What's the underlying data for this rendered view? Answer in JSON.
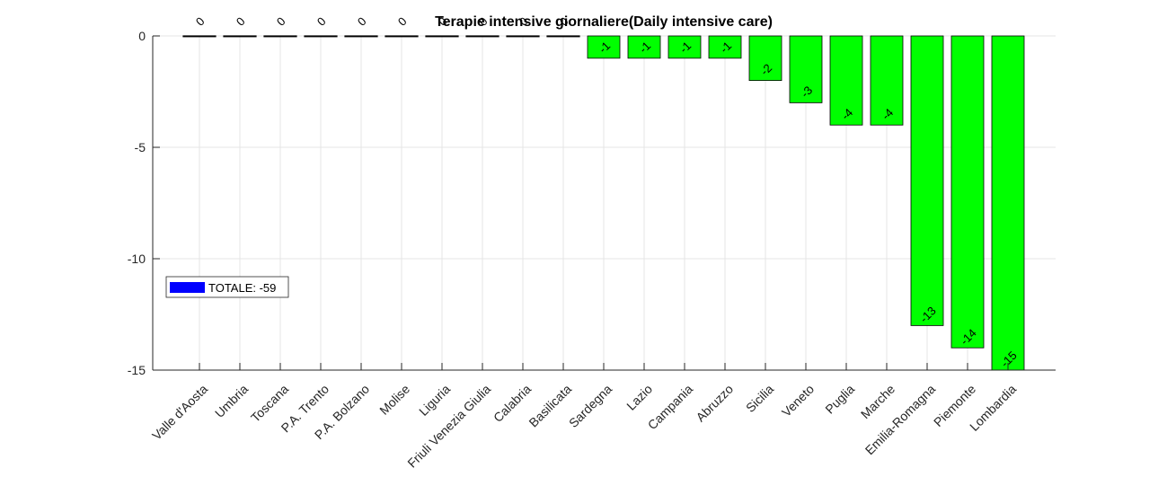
{
  "chart_data": {
    "type": "bar",
    "title": "Terapie intensive giornaliere(Daily intensive care)",
    "categories": [
      "Valle d'Aosta",
      "Umbria",
      "Toscana",
      "P.A. Trento",
      "P.A. Bolzano",
      "Molise",
      "Liguria",
      "Friuli Venezia Giulia",
      "Calabria",
      "Basilicata",
      "Sardegna",
      "Lazio",
      "Campania",
      "Abruzzo",
      "Sicilia",
      "Veneto",
      "Puglia",
      "Marche",
      "Emilia-Romagna",
      "Piemonte",
      "Lombardia"
    ],
    "values": [
      0,
      0,
      0,
      0,
      0,
      0,
      0,
      0,
      0,
      0,
      -1,
      -1,
      -1,
      -1,
      -2,
      -3,
      -4,
      -4,
      -13,
      -14,
      -15
    ],
    "data_labels": [
      "0",
      "0",
      "0",
      "0",
      "0",
      "0",
      "0",
      "0",
      "0",
      "0",
      "-1",
      "-1",
      "-1",
      "-1",
      "-2",
      "-3",
      "-4",
      "-4",
      "-13",
      "-14",
      "-15"
    ],
    "ylim": [
      -15,
      0
    ],
    "yticks": [
      0,
      -5,
      -10,
      -15
    ],
    "ytick_labels": [
      "0",
      "-5",
      "-10",
      "-15"
    ],
    "grid": true,
    "bar_color": "#00ff00",
    "legend": {
      "placement": "left-middle",
      "label": "TOTALE: -59",
      "swatch_color": "#0000ff"
    }
  }
}
